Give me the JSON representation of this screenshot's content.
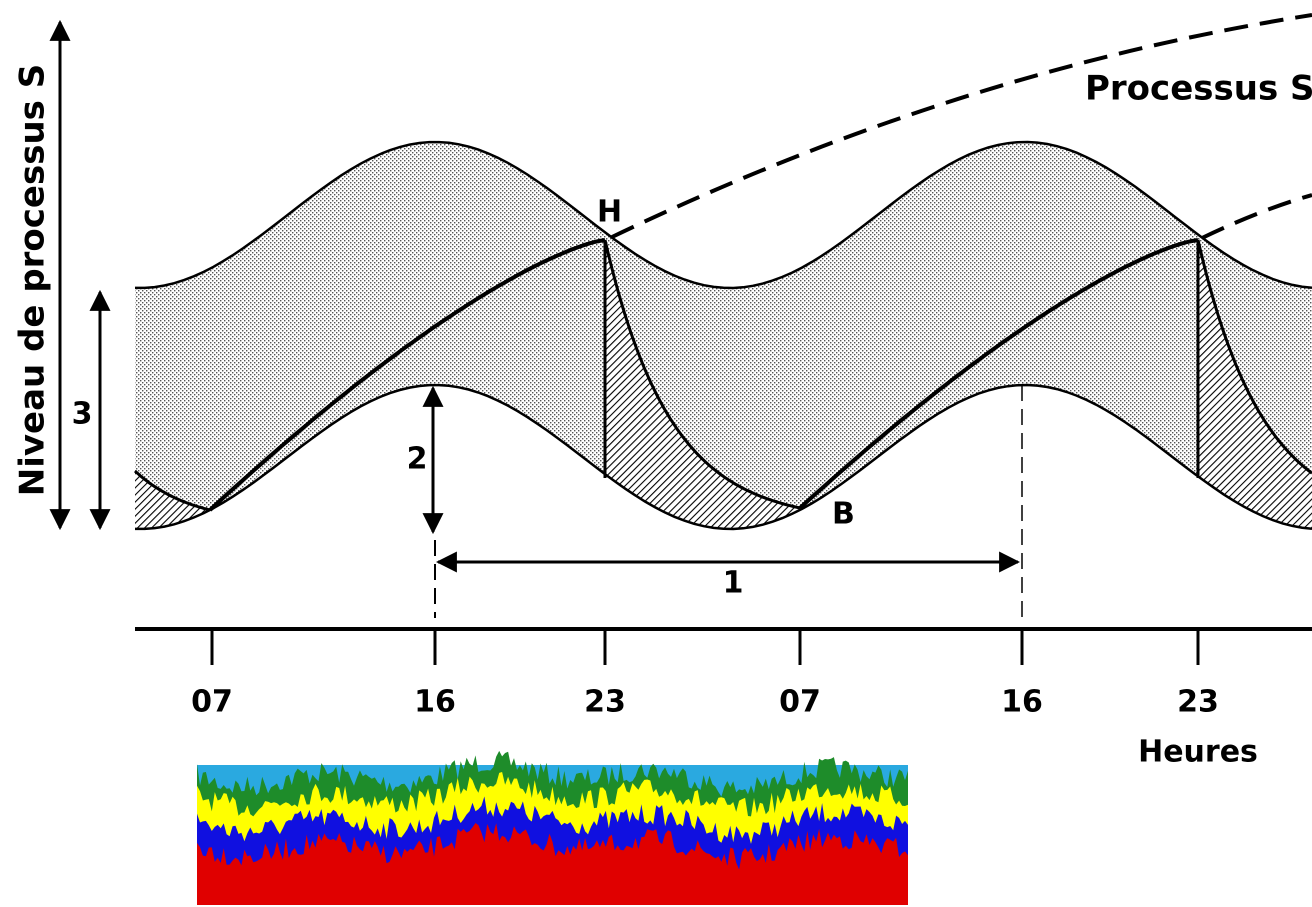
{
  "y_axis_label": "Niveau de processus S",
  "curve_label": "Processus S",
  "points": {
    "high": "H",
    "low": "B"
  },
  "markers": {
    "period": "1",
    "amplitude": "2",
    "range": "3"
  },
  "time_ticks": [
    "07",
    "16",
    "23",
    "07",
    "16",
    "23"
  ],
  "x_axis_label": "Heures"
}
